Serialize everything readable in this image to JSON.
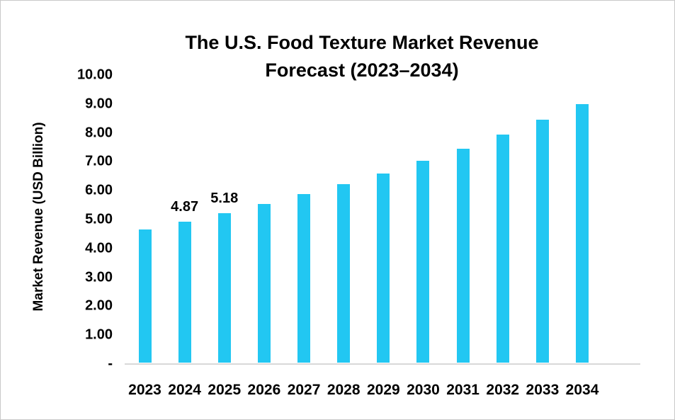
{
  "page": {
    "background": "#ffffff",
    "border_color": "#c9c9c9"
  },
  "chart_data": {
    "type": "bar",
    "title": "The U.S. Food Texture Market Revenue Forecast (2023–2034)",
    "title_line1": "The U.S. Food Texture Market Revenue",
    "title_line2": "Forecast (2023–2034)",
    "xlabel": "",
    "ylabel": "Market Revenue (USD Billion)",
    "categories": [
      "2023",
      "2024",
      "2025",
      "2026",
      "2027",
      "2028",
      "2029",
      "2030",
      "2031",
      "2032",
      "2033",
      "2034"
    ],
    "values": [
      4.6,
      4.87,
      5.18,
      5.5,
      5.84,
      6.17,
      6.55,
      6.98,
      7.41,
      7.89,
      8.41,
      8.94
    ],
    "data_labels": [
      null,
      "4.87",
      "5.18",
      null,
      null,
      null,
      null,
      null,
      null,
      null,
      null,
      null
    ],
    "y_ticks": [
      {
        "value": 10,
        "label": "10.00"
      },
      {
        "value": 9,
        "label": "9.00"
      },
      {
        "value": 8,
        "label": "8.00"
      },
      {
        "value": 7,
        "label": "7.00"
      },
      {
        "value": 6,
        "label": "6.00"
      },
      {
        "value": 5,
        "label": "5.00"
      },
      {
        "value": 4,
        "label": "4.00"
      },
      {
        "value": 3,
        "label": "3.00"
      },
      {
        "value": 2,
        "label": "2.00"
      },
      {
        "value": 1,
        "label": "1.00"
      },
      {
        "value": 0,
        "label": "-"
      }
    ],
    "ylim": [
      0,
      10
    ],
    "grid": false,
    "legend": "none",
    "bar_color": "#22c7f2",
    "axis_line_color": "#d9d9d9",
    "text_color": "#000000"
  }
}
